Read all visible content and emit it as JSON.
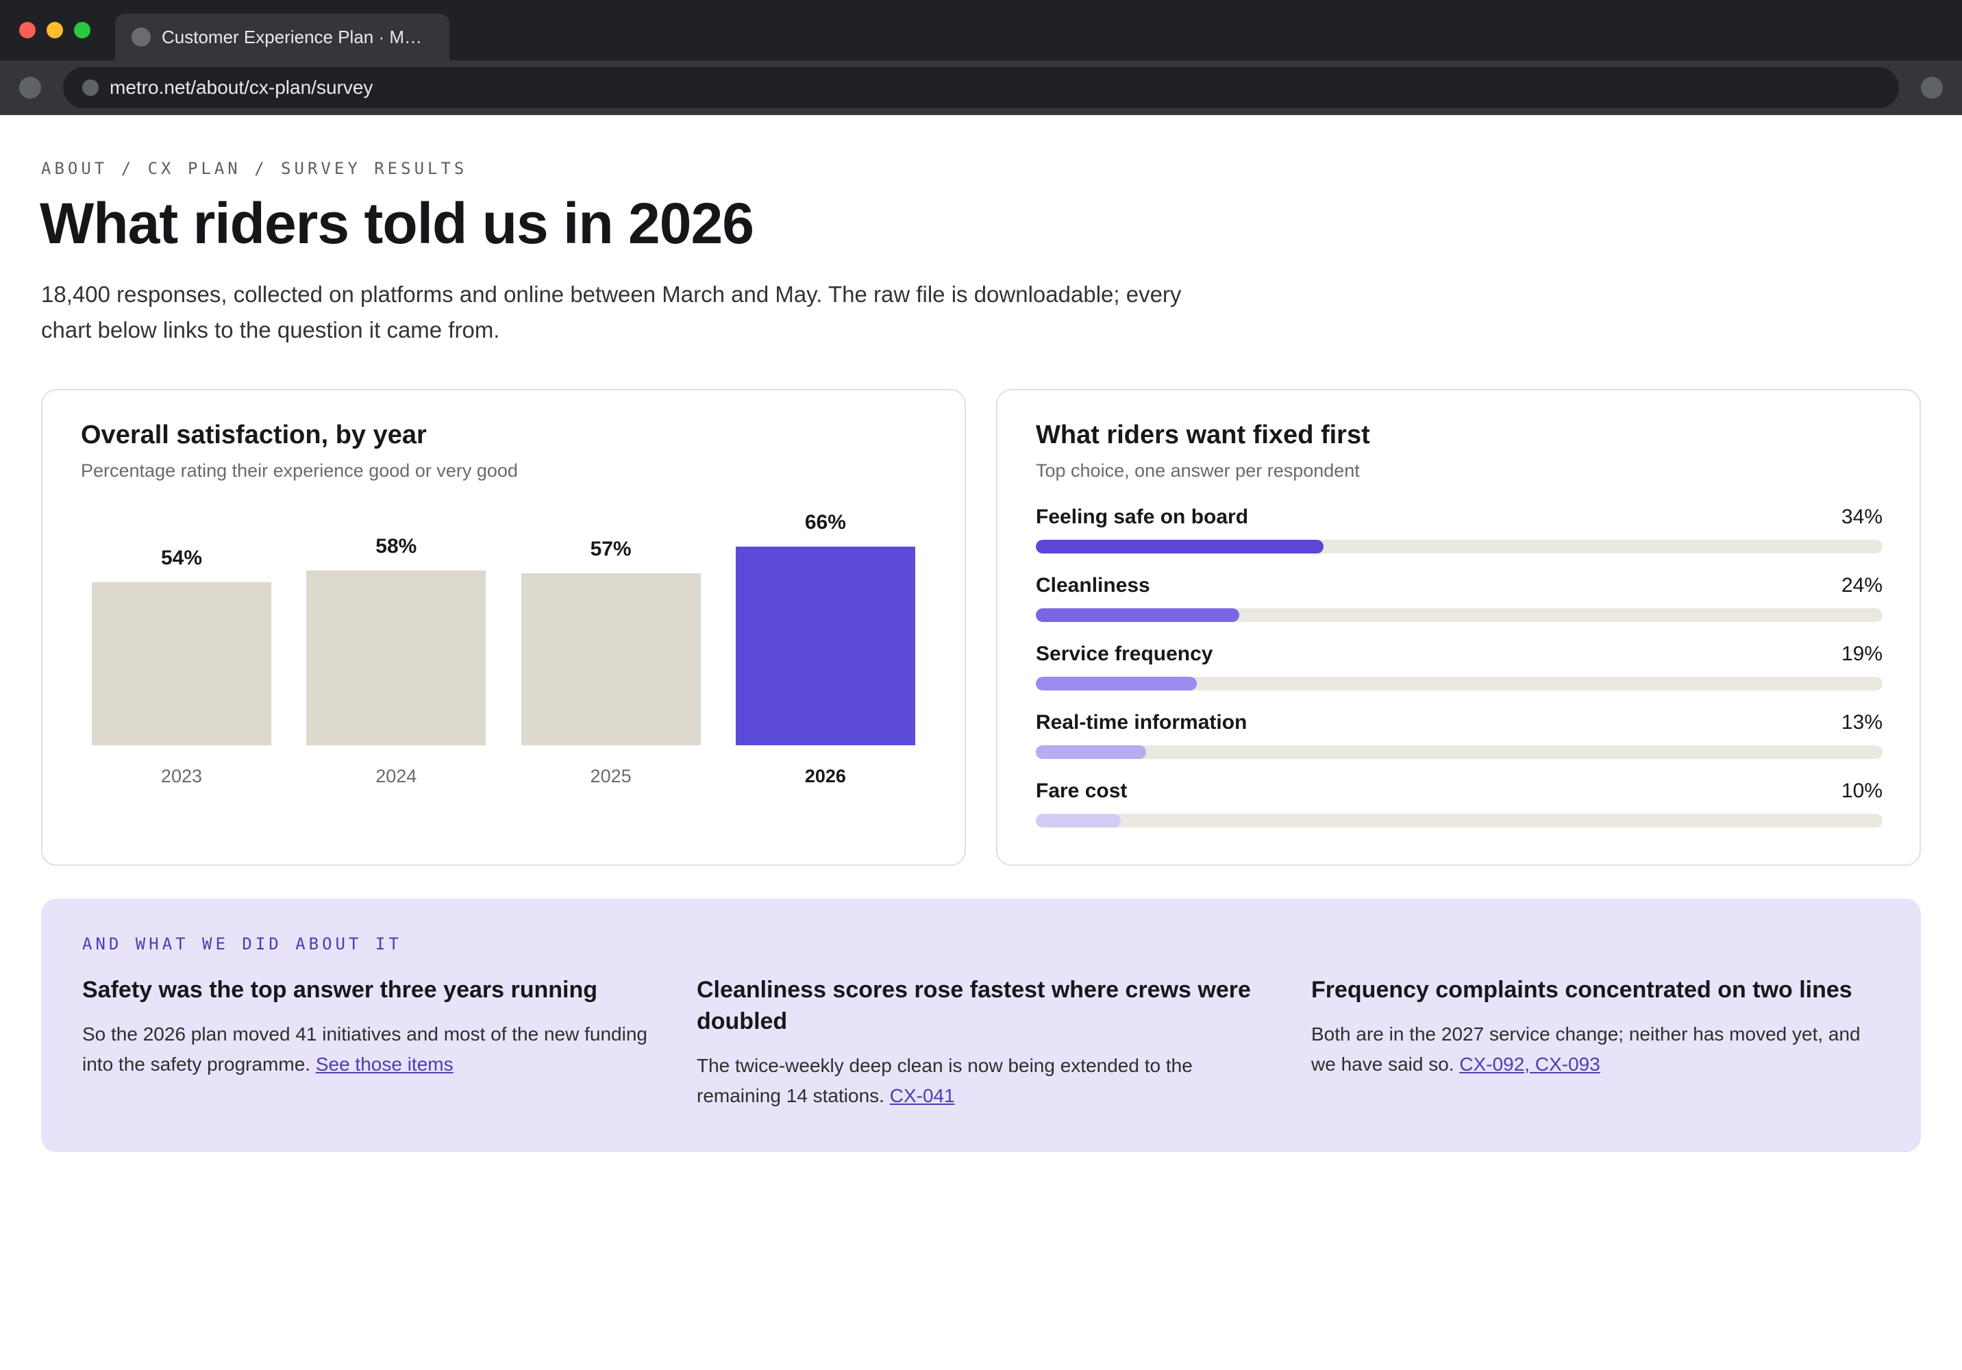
{
  "browser": {
    "tab_title": "Customer Experience Plan · M…",
    "url": "metro.net/about/cx-plan/survey"
  },
  "page": {
    "breadcrumb": "ABOUT / CX PLAN / SURVEY RESULTS",
    "title": "What riders told us in 2026",
    "intro": "18,400 responses, collected on platforms and online between March and May. The raw file is downloadable; every chart below links to the question it came from."
  },
  "satisfaction_card": {
    "title": "Overall satisfaction, by year",
    "subtitle": "Percentage rating their experience good or very good"
  },
  "priorities_card": {
    "title": "What riders want fixed first",
    "subtitle": "Top choice, one answer per respondent",
    "items": [
      {
        "label": "Feeling safe on board",
        "pct_label": "34%",
        "value": 34,
        "color": "#5b47d6"
      },
      {
        "label": "Cleanliness",
        "pct_label": "24%",
        "value": 24,
        "color": "#7a68e3"
      },
      {
        "label": "Service frequency",
        "pct_label": "19%",
        "value": 19,
        "color": "#9a8bec"
      },
      {
        "label": "Real-time information",
        "pct_label": "13%",
        "value": 13,
        "color": "#b7acf1"
      },
      {
        "label": "Fare cost",
        "pct_label": "10%",
        "value": 10,
        "color": "#d3cdf6"
      }
    ],
    "scale_max": 100
  },
  "chart_data": {
    "type": "bar",
    "title": "Overall satisfaction, by year",
    "subtitle": "Percentage rating their experience good or very good",
    "categories": [
      "2023",
      "2024",
      "2025",
      "2026"
    ],
    "values": [
      54,
      58,
      57,
      66
    ],
    "value_labels": [
      "54%",
      "58%",
      "57%",
      "66%"
    ],
    "highlight_index": 3,
    "colors": {
      "default": "#ddd9cf",
      "highlight": "#5b4bd8"
    },
    "ylim": [
      0,
      100
    ],
    "grid": false
  },
  "callout": {
    "eyebrow": "AND WHAT WE DID ABOUT IT",
    "columns": [
      {
        "title": "Safety was the top answer three years running",
        "body": "So the 2026 plan moved 41 initiatives and most of the new funding into the safety programme.",
        "link": "See those items"
      },
      {
        "title": "Cleanliness scores rose fastest where crews were doubled",
        "body": "The twice-weekly deep clean is now being extended to the remaining 14 stations.",
        "link": "CX-041"
      },
      {
        "title": "Frequency complaints concentrated on two lines",
        "body": "Both are in the 2027 service change; neither has moved yet, and we have said so.",
        "link": "CX-092, CX-093"
      }
    ]
  },
  "colors": {
    "accent": "#5b4bd8",
    "callout_bg": "#e8e3f8",
    "link": "#4a3fb0"
  }
}
